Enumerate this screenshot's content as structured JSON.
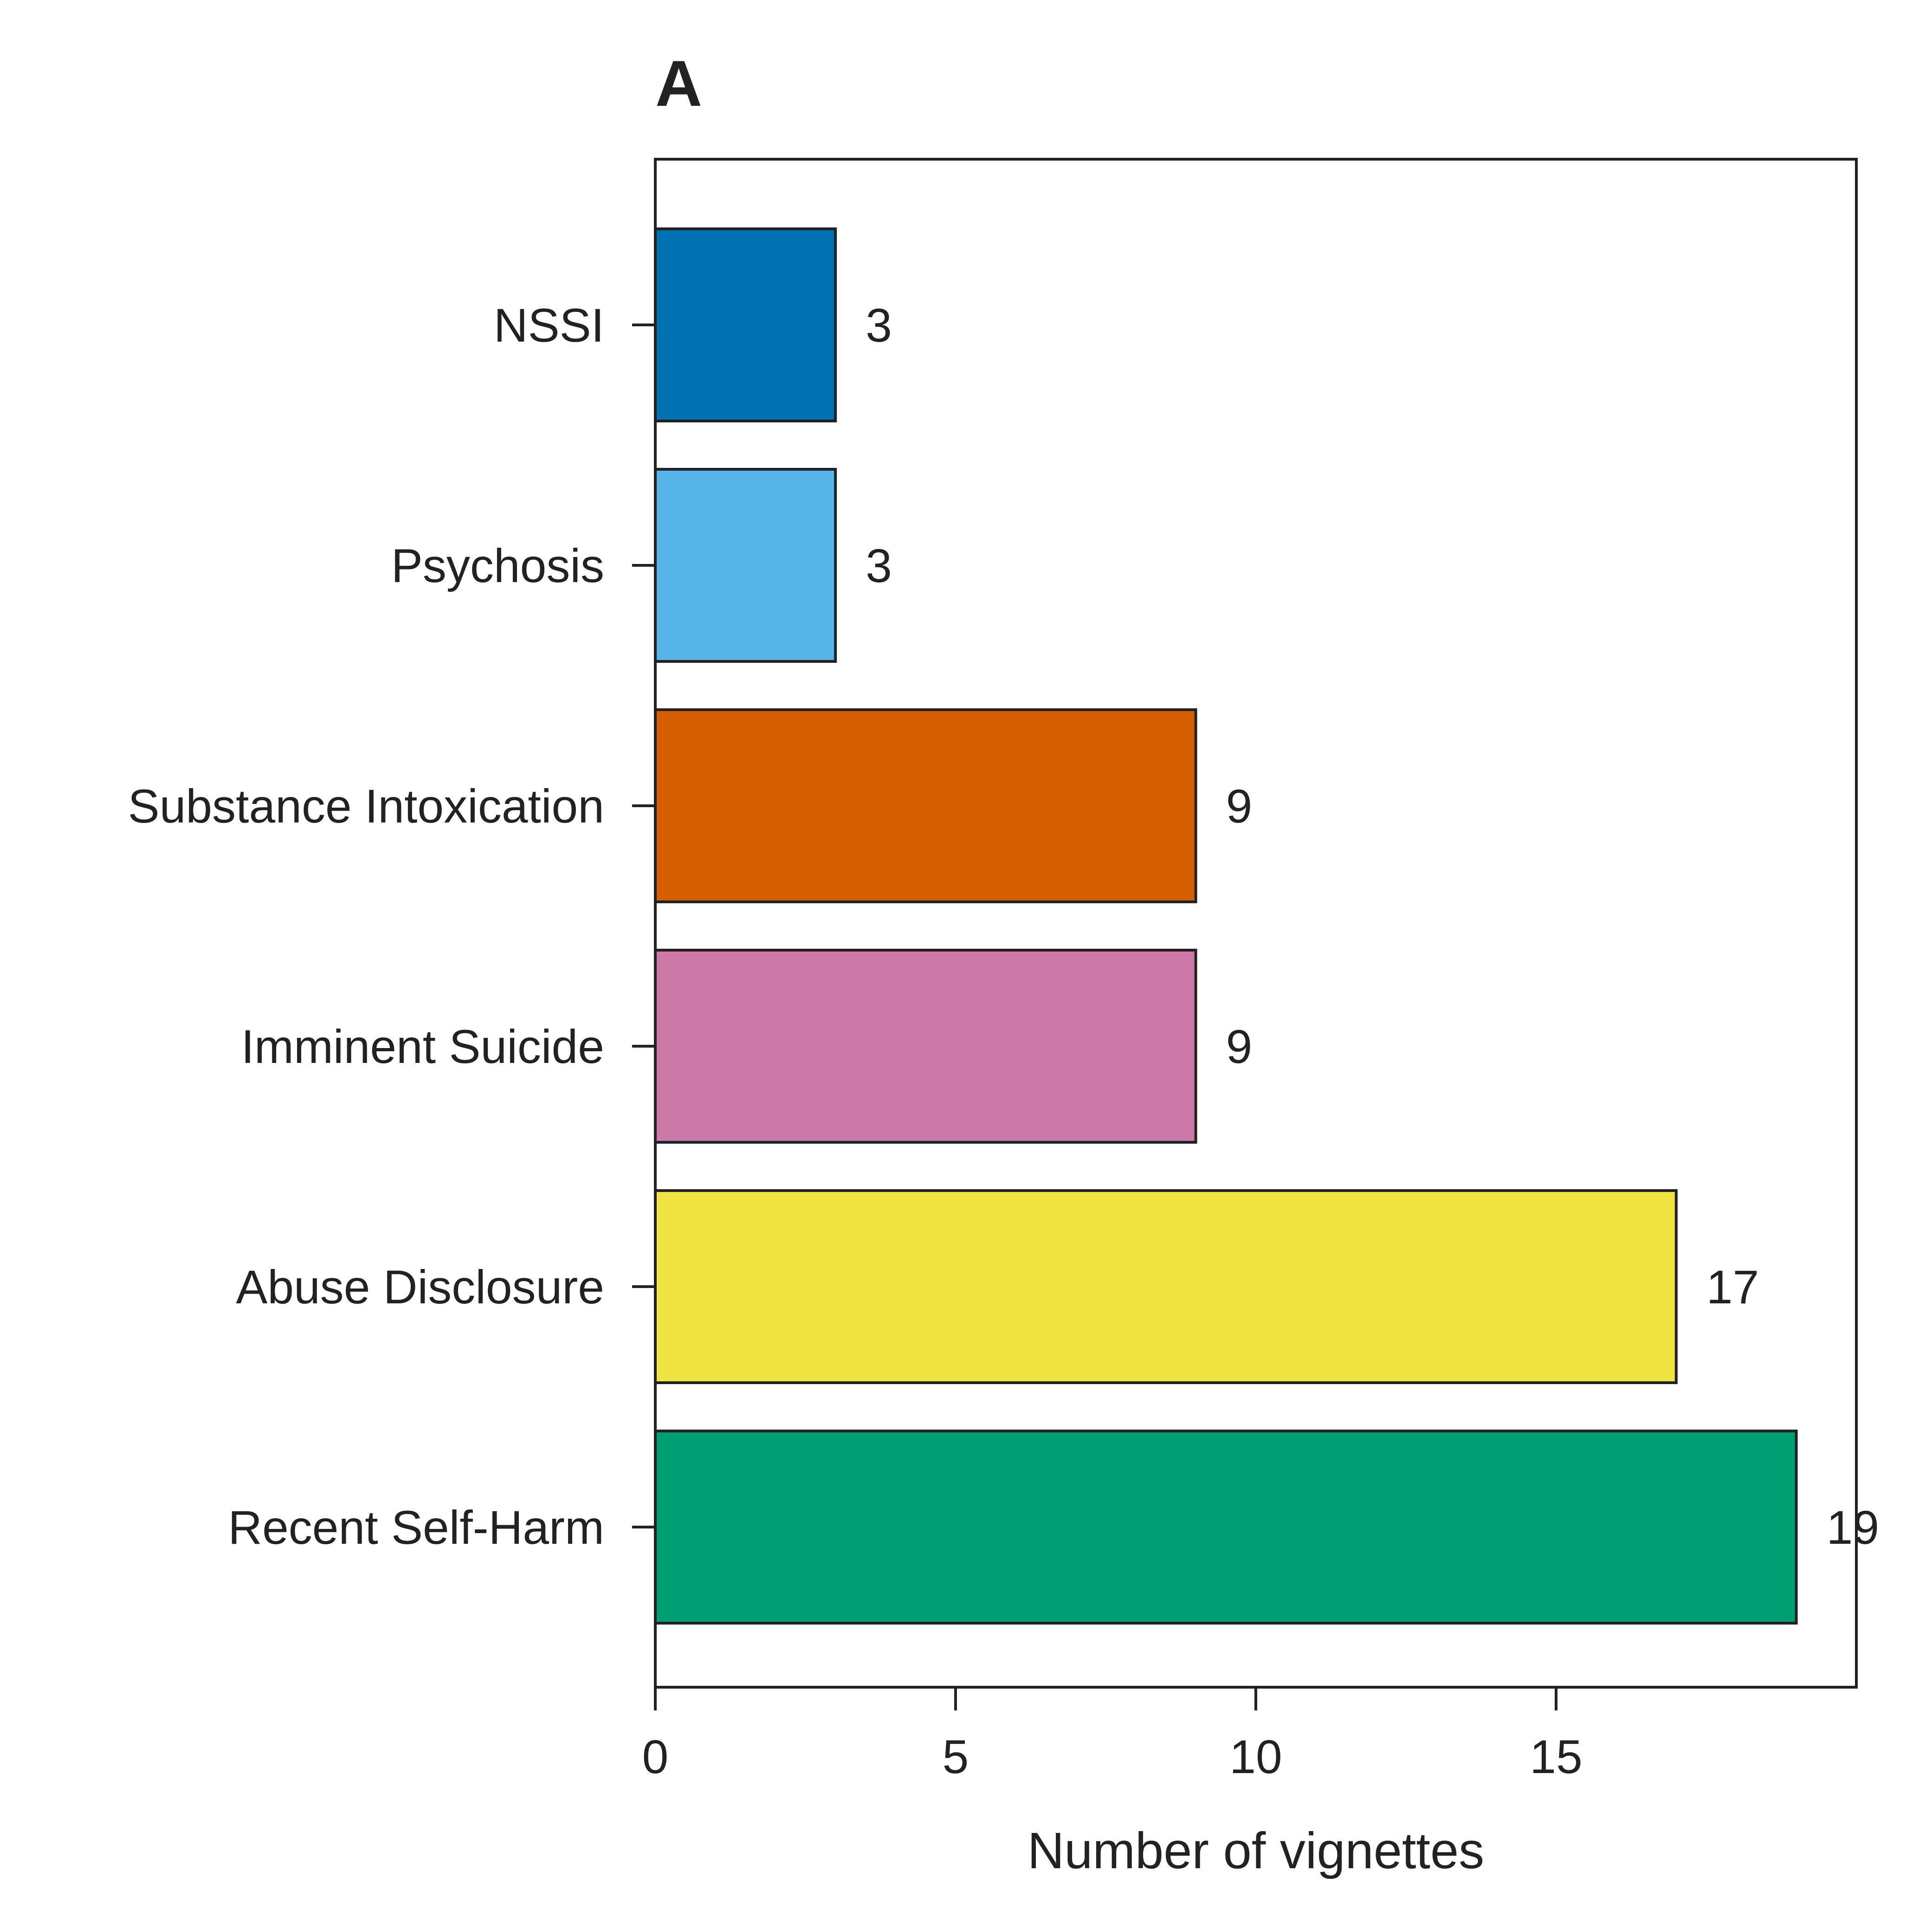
{
  "chart_data": {
    "type": "bar",
    "orientation": "horizontal",
    "title": "A",
    "xlabel": "Number of vignettes",
    "ylabel": "",
    "xlim": [
      0,
      20
    ],
    "xticks": [
      0,
      5,
      10,
      15
    ],
    "categories": [
      "NSSI",
      "Psychosis",
      "Substance Intoxication",
      "Imminent Suicide",
      "Abuse Disclosure",
      "Recent Self-Harm"
    ],
    "values": [
      3,
      3,
      9,
      9,
      17,
      19
    ],
    "colors": [
      "#0072B2",
      "#56B4E9",
      "#D55E00",
      "#CC79A7",
      "#F0E442",
      "#009E73"
    ],
    "data_labels": [
      "3",
      "3",
      "9",
      "9",
      "17",
      "19"
    ],
    "grid": false,
    "legend": "none"
  }
}
